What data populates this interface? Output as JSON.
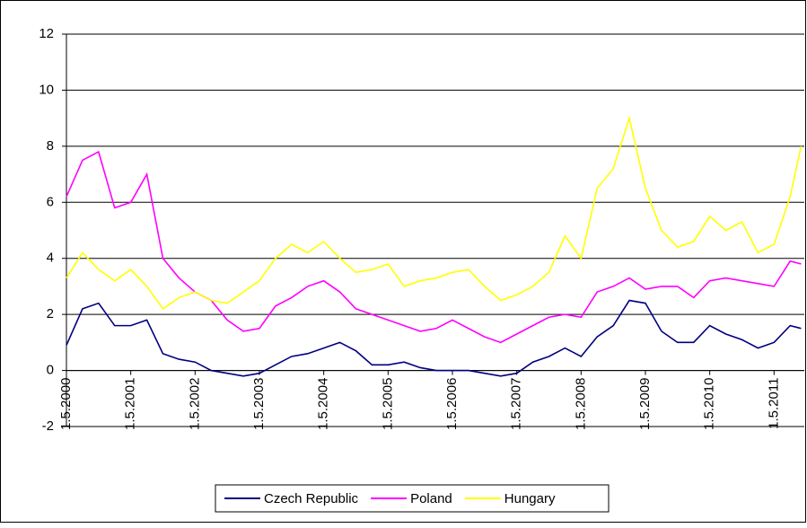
{
  "chart_data": {
    "type": "line",
    "x": [
      2000.33,
      2000.58,
      2000.83,
      2001.08,
      2001.33,
      2001.58,
      2001.83,
      2002.08,
      2002.33,
      2002.58,
      2002.83,
      2003.08,
      2003.33,
      2003.58,
      2003.83,
      2004.08,
      2004.33,
      2004.58,
      2004.83,
      2005.08,
      2005.33,
      2005.58,
      2005.83,
      2006.08,
      2006.33,
      2006.58,
      2006.83,
      2007.08,
      2007.33,
      2007.58,
      2007.83,
      2008.08,
      2008.33,
      2008.58,
      2008.83,
      2009.08,
      2009.33,
      2009.58,
      2009.83,
      2010.08,
      2010.33,
      2010.58,
      2010.83,
      2011.08,
      2011.33,
      2011.58,
      2011.75
    ],
    "series": [
      {
        "name": "Czech Republic",
        "color": "#000080",
        "values": [
          0.9,
          2.2,
          2.4,
          1.6,
          1.6,
          1.8,
          0.6,
          0.4,
          0.3,
          0.0,
          -0.1,
          -0.2,
          -0.1,
          0.2,
          0.5,
          0.6,
          0.8,
          1.0,
          0.7,
          0.2,
          0.2,
          0.3,
          0.1,
          0.0,
          0.0,
          0.0,
          -0.1,
          -0.2,
          -0.1,
          0.3,
          0.5,
          0.8,
          0.5,
          1.2,
          1.6,
          2.5,
          2.4,
          1.4,
          1.0,
          1.0,
          1.6,
          1.3,
          1.1,
          0.8,
          1.0,
          1.6,
          1.5
        ]
      },
      {
        "name": "Poland",
        "color": "#ff00ff",
        "values": [
          6.2,
          7.5,
          7.8,
          5.8,
          6.0,
          7.0,
          4.0,
          3.3,
          2.8,
          2.5,
          1.8,
          1.4,
          1.5,
          2.3,
          2.6,
          3.0,
          3.2,
          2.8,
          2.2,
          2.0,
          1.8,
          1.6,
          1.4,
          1.5,
          1.8,
          1.5,
          1.2,
          1.0,
          1.3,
          1.6,
          1.9,
          2.0,
          1.9,
          2.8,
          3.0,
          3.3,
          2.9,
          3.0,
          3.0,
          2.6,
          3.2,
          3.3,
          3.2,
          3.1,
          3.0,
          3.9,
          3.8
        ]
      },
      {
        "name": "Hungary",
        "color": "#ffff00",
        "values": [
          3.3,
          4.2,
          3.6,
          3.2,
          3.6,
          3.0,
          2.2,
          2.6,
          2.8,
          2.5,
          2.4,
          2.8,
          3.2,
          4.0,
          4.5,
          4.2,
          4.6,
          4.0,
          3.5,
          3.6,
          3.8,
          3.0,
          3.2,
          3.3,
          3.5,
          3.6,
          3.0,
          2.5,
          2.7,
          3.0,
          3.5,
          4.8,
          4.0,
          6.5,
          7.2,
          9.0,
          6.5,
          5.0,
          4.4,
          4.6,
          5.5,
          5.0,
          5.3,
          4.2,
          4.5,
          6.2,
          8.0
        ]
      }
    ],
    "xlim": [
      2000.33,
      2011.8
    ],
    "xticks": [
      {
        "value": 2000.33,
        "label": "1.5.2000"
      },
      {
        "value": 2001.33,
        "label": "1.5.2001"
      },
      {
        "value": 2002.33,
        "label": "1.5.2002"
      },
      {
        "value": 2003.33,
        "label": "1.5.2003"
      },
      {
        "value": 2004.33,
        "label": "1.5.2004"
      },
      {
        "value": 2005.33,
        "label": "1.5.2005"
      },
      {
        "value": 2006.33,
        "label": "1.5.2006"
      },
      {
        "value": 2007.33,
        "label": "1.5.2007"
      },
      {
        "value": 2008.33,
        "label": "1.5.2008"
      },
      {
        "value": 2009.33,
        "label": "1.5.2009"
      },
      {
        "value": 2010.33,
        "label": "1.5.2010"
      },
      {
        "value": 2011.33,
        "label": "1.5.2011"
      }
    ],
    "ylim": [
      -2,
      12
    ],
    "yticks": [
      -2,
      0,
      2,
      4,
      6,
      8,
      10,
      12
    ],
    "grid": true,
    "legend": "bottom"
  }
}
